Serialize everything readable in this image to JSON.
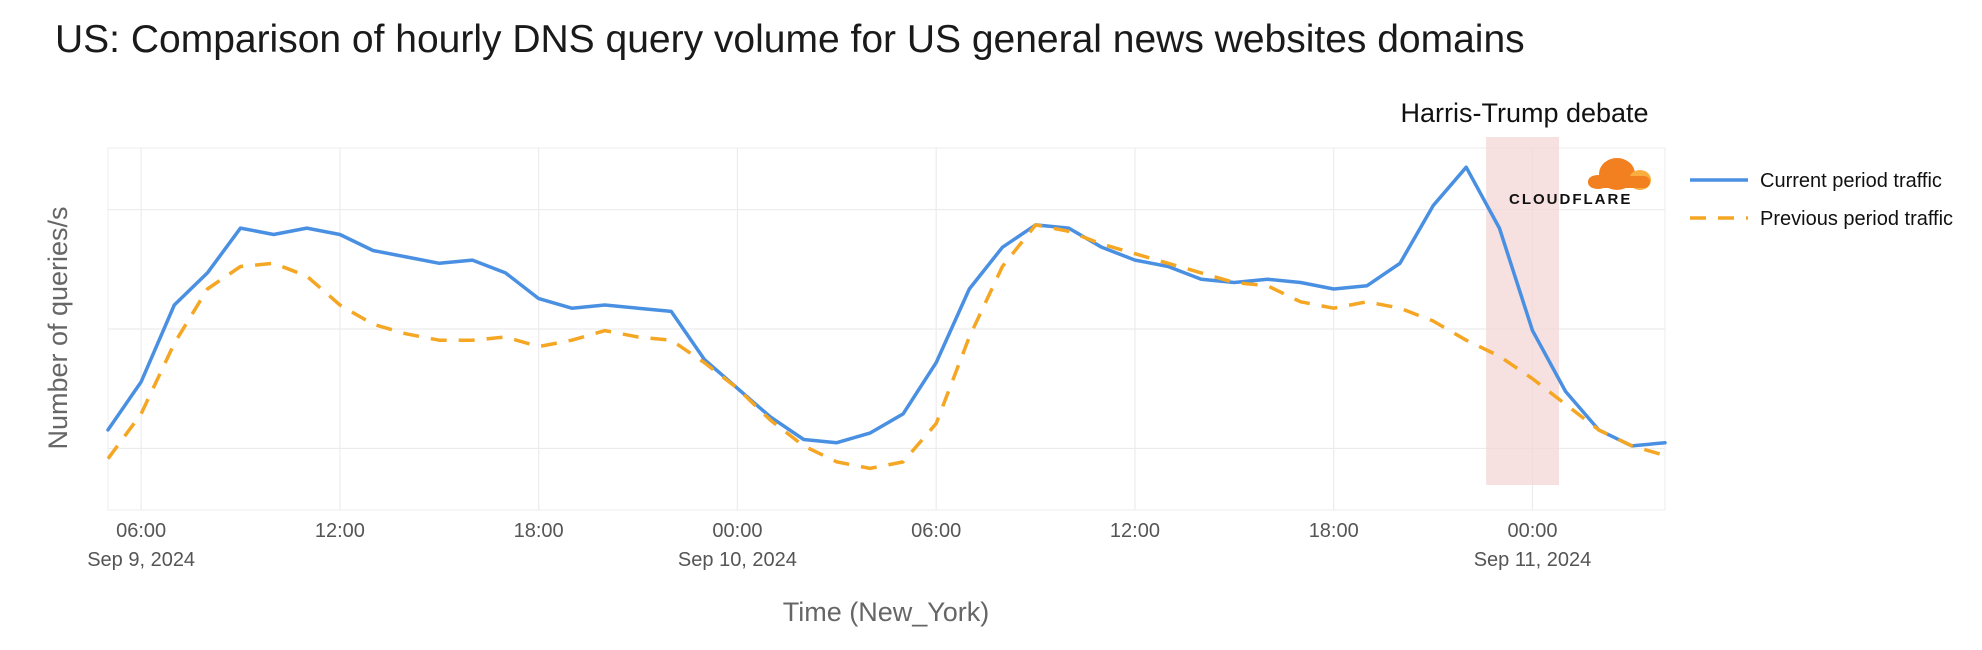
{
  "chart_data": {
    "type": "line",
    "title": "US: Comparison of hourly DNS query volume for US general news websites domains",
    "xlabel": "Time (New_York)",
    "ylabel": "Number of queries/s",
    "x_unit": "hour",
    "x_start": "2024-09-09T05:00",
    "xlim": [
      0,
      47
    ],
    "ylim": [
      0,
      1.13
    ],
    "ticks": [
      {
        "hour": 1,
        "time": "06:00",
        "date": "Sep 9, 2024"
      },
      {
        "hour": 7,
        "time": "12:00",
        "date": ""
      },
      {
        "hour": 13,
        "time": "18:00",
        "date": ""
      },
      {
        "hour": 19,
        "time": "00:00",
        "date": "Sep 10, 2024"
      },
      {
        "hour": 25,
        "time": "06:00",
        "date": ""
      },
      {
        "hour": 31,
        "time": "12:00",
        "date": ""
      },
      {
        "hour": 37,
        "time": "18:00",
        "date": ""
      },
      {
        "hour": 43,
        "time": "00:00",
        "date": "Sep 11, 2024"
      }
    ],
    "grid": true,
    "legend_position": "top-right",
    "series": [
      {
        "name": "Current period traffic",
        "color": "#4a90e2",
        "dash": "solid",
        "values": [
          0.25,
          0.4,
          0.64,
          0.74,
          0.88,
          0.86,
          0.88,
          0.86,
          0.81,
          0.79,
          0.77,
          0.78,
          0.74,
          0.66,
          0.63,
          0.64,
          0.63,
          0.62,
          0.47,
          0.38,
          0.29,
          0.22,
          0.21,
          0.24,
          0.3,
          0.46,
          0.69,
          0.82,
          0.89,
          0.88,
          0.82,
          0.78,
          0.76,
          0.72,
          0.71,
          0.72,
          0.71,
          0.69,
          0.7,
          0.77,
          0.95,
          1.07,
          0.88,
          0.56,
          0.37,
          0.25,
          0.2,
          0.21
        ]
      },
      {
        "name": "Previous period traffic",
        "color": "#f5a623",
        "dash": "dashed",
        "values": [
          0.16,
          0.3,
          0.52,
          0.69,
          0.76,
          0.77,
          0.73,
          0.64,
          0.58,
          0.55,
          0.53,
          0.53,
          0.54,
          0.51,
          0.53,
          0.56,
          0.54,
          0.53,
          0.46,
          0.38,
          0.28,
          0.2,
          0.15,
          0.13,
          0.15,
          0.27,
          0.54,
          0.76,
          0.89,
          0.87,
          0.83,
          0.8,
          0.77,
          0.74,
          0.71,
          0.7,
          0.65,
          0.63,
          0.65,
          0.63,
          0.59,
          0.53,
          0.48,
          0.41,
          0.33,
          0.25,
          0.2,
          0.17
        ]
      }
    ],
    "annotation": {
      "label": "Harris-Trump debate",
      "x_start": 41.6,
      "x_end": 43.8,
      "color": "#f3d5d5"
    },
    "branding": "CLOUDFLARE",
    "brand_colors": {
      "cloud_primary": "#f38020",
      "cloud_secondary": "#faae40"
    }
  }
}
